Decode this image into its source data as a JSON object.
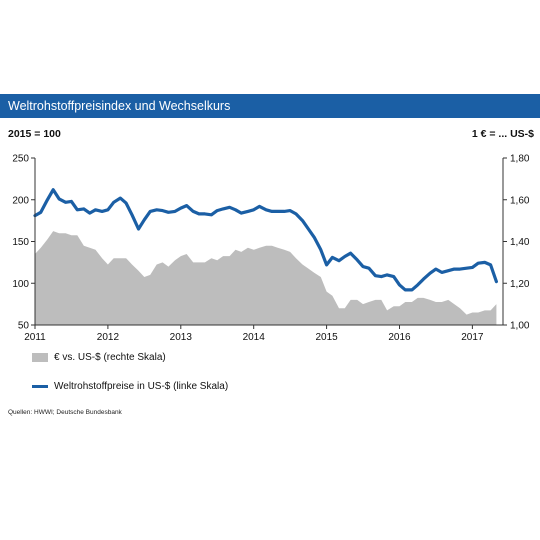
{
  "header": {
    "title": "Weltrohstoffpreisindex  und Wechselkurs"
  },
  "units": {
    "left": "2015 = 100",
    "right": "1 € = ... US-$"
  },
  "legend": {
    "area_label": "€ vs. US-$ (rechte Skala)",
    "line_label": "Weltrohstoffpreise in US-$ (linke Skala)"
  },
  "source": "Quellen: HWWI; Deutsche Bundesbank",
  "colors": {
    "title_bar": "#1b5fa5",
    "line": "#1b5fa5",
    "area": "#bdbdbd"
  },
  "chart_data": {
    "type": "line",
    "x_ticks": [
      "2011",
      "2012",
      "2013",
      "2014",
      "2015",
      "2016",
      "2017"
    ],
    "y_left": {
      "lim": [
        50,
        250
      ],
      "ticks": [
        "50",
        "100",
        "150",
        "200",
        "250"
      ]
    },
    "y_right": {
      "lim": [
        1.0,
        1.8
      ],
      "ticks": [
        "1,00",
        "1,20",
        "1,40",
        "1,60",
        "1,80"
      ]
    },
    "grid": false,
    "series": [
      {
        "name": "Weltrohstoffpreise in US-$ (linke Skala)",
        "axis": "left",
        "style": "line",
        "x": [
          2011.0,
          2011.08,
          2011.17,
          2011.25,
          2011.33,
          2011.42,
          2011.5,
          2011.58,
          2011.67,
          2011.75,
          2011.83,
          2011.92,
          2012.0,
          2012.08,
          2012.17,
          2012.25,
          2012.33,
          2012.42,
          2012.5,
          2012.58,
          2012.67,
          2012.75,
          2012.83,
          2012.92,
          2013.0,
          2013.08,
          2013.17,
          2013.25,
          2013.33,
          2013.42,
          2013.5,
          2013.58,
          2013.67,
          2013.75,
          2013.83,
          2013.92,
          2014.0,
          2014.08,
          2014.17,
          2014.25,
          2014.33,
          2014.42,
          2014.5,
          2014.58,
          2014.67,
          2014.75,
          2014.83,
          2014.92,
          2015.0,
          2015.08,
          2015.17,
          2015.25,
          2015.33,
          2015.42,
          2015.5,
          2015.58,
          2015.67,
          2015.75,
          2015.83,
          2015.92,
          2016.0,
          2016.08,
          2016.17,
          2016.25,
          2016.33,
          2016.42,
          2016.5,
          2016.58,
          2016.67,
          2016.75,
          2016.83,
          2016.92,
          2017.0,
          2017.08,
          2017.17,
          2017.25,
          2017.33
        ],
        "values": [
          181,
          185,
          200,
          212,
          201,
          197,
          198,
          188,
          189,
          184,
          188,
          186,
          188,
          197,
          202,
          196,
          182,
          165,
          176,
          186,
          188,
          187,
          185,
          186,
          190,
          193,
          186,
          183,
          183,
          182,
          187,
          189,
          191,
          188,
          184,
          186,
          188,
          192,
          188,
          186,
          186,
          186,
          187,
          183,
          175,
          165,
          155,
          140,
          122,
          131,
          127,
          132,
          136,
          128,
          120,
          118,
          109,
          108,
          110,
          108,
          98,
          92,
          92,
          98,
          105,
          112,
          117,
          113,
          115,
          117,
          117,
          118,
          119,
          124,
          125,
          122,
          102
        ]
      },
      {
        "name": "€ vs. US-$ (rechte Skala)",
        "axis": "right",
        "style": "area",
        "x": [
          2011.0,
          2011.08,
          2011.17,
          2011.25,
          2011.33,
          2011.42,
          2011.5,
          2011.58,
          2011.67,
          2011.75,
          2011.83,
          2011.92,
          2012.0,
          2012.08,
          2012.17,
          2012.25,
          2012.33,
          2012.42,
          2012.5,
          2012.58,
          2012.67,
          2012.75,
          2012.83,
          2012.92,
          2013.0,
          2013.08,
          2013.17,
          2013.25,
          2013.33,
          2013.42,
          2013.5,
          2013.58,
          2013.67,
          2013.75,
          2013.83,
          2013.92,
          2014.0,
          2014.08,
          2014.17,
          2014.25,
          2014.33,
          2014.42,
          2014.5,
          2014.58,
          2014.67,
          2014.75,
          2014.83,
          2014.92,
          2015.0,
          2015.08,
          2015.17,
          2015.25,
          2015.33,
          2015.42,
          2015.5,
          2015.58,
          2015.67,
          2015.75,
          2015.83,
          2015.92,
          2016.0,
          2016.08,
          2016.17,
          2016.25,
          2016.33,
          2016.42,
          2016.5,
          2016.58,
          2016.67,
          2016.75,
          2016.83,
          2016.92,
          2017.0,
          2017.08,
          2017.17,
          2017.25,
          2017.33
        ],
        "values": [
          1.34,
          1.37,
          1.41,
          1.45,
          1.44,
          1.44,
          1.43,
          1.43,
          1.38,
          1.37,
          1.36,
          1.32,
          1.29,
          1.32,
          1.32,
          1.32,
          1.29,
          1.26,
          1.23,
          1.24,
          1.29,
          1.3,
          1.28,
          1.31,
          1.33,
          1.34,
          1.3,
          1.3,
          1.3,
          1.32,
          1.31,
          1.33,
          1.33,
          1.36,
          1.35,
          1.37,
          1.36,
          1.37,
          1.38,
          1.38,
          1.37,
          1.36,
          1.35,
          1.32,
          1.29,
          1.27,
          1.25,
          1.23,
          1.16,
          1.14,
          1.08,
          1.08,
          1.12,
          1.12,
          1.1,
          1.11,
          1.12,
          1.12,
          1.07,
          1.09,
          1.09,
          1.11,
          1.11,
          1.13,
          1.13,
          1.12,
          1.11,
          1.11,
          1.12,
          1.1,
          1.08,
          1.05,
          1.06,
          1.06,
          1.07,
          1.07,
          1.1
        ]
      }
    ]
  }
}
